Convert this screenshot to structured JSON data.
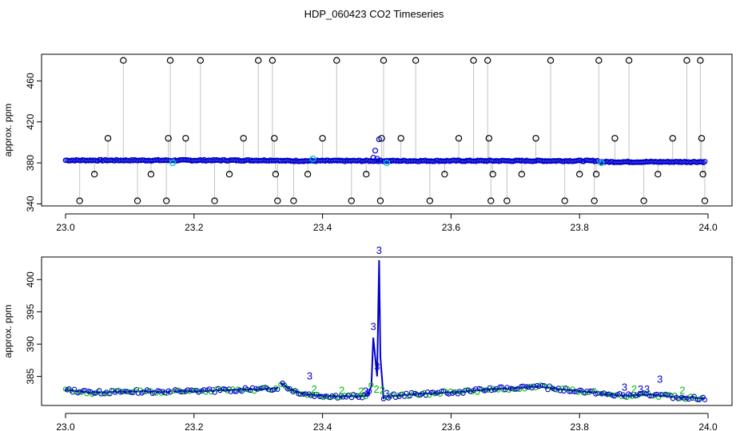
{
  "title": "HDP_060423  CO2 Timeseries",
  "colors": {
    "axis": "#000000",
    "blue": "#0000cc",
    "cyan": "#00cccc",
    "green": "#00bb00",
    "grey": "#888888",
    "outlier": "#000000"
  },
  "chart_data": [
    {
      "type": "scatter",
      "ylabel": "approx. ppm",
      "xlabel": "",
      "xlim": [
        23.0,
        24.0
      ],
      "ylim": [
        338,
        486
      ],
      "xticks": [
        23.0,
        23.2,
        23.4,
        23.6,
        23.8,
        24.0
      ],
      "xtick_labels": [
        "23.0",
        "23.2",
        "23.4",
        "23.6",
        "23.8",
        "24.0"
      ],
      "yticks": [
        340,
        380,
        420,
        460
      ],
      "ytick_labels": [
        "340",
        "380",
        "420",
        "460"
      ],
      "grid": false,
      "segments": [
        {
          "x0": 23.0,
          "x1": 23.163,
          "level": 382.5
        },
        {
          "x0": 23.168,
          "x1": 23.333,
          "level": 382.5
        },
        {
          "x0": 23.335,
          "x1": 23.499,
          "level": 382.0
        },
        {
          "x0": 23.5,
          "x1": 23.663,
          "level": 382.0
        },
        {
          "x0": 23.665,
          "x1": 23.828,
          "level": 382.0
        },
        {
          "x0": 23.832,
          "x1": 23.995,
          "level": 381.0
        }
      ],
      "outliers": [
        {
          "x": 23.022,
          "y": 343
        },
        {
          "x": 23.045,
          "y": 369
        },
        {
          "x": 23.066,
          "y": 404
        },
        {
          "x": 23.09,
          "y": 480
        },
        {
          "x": 23.112,
          "y": 343
        },
        {
          "x": 23.133,
          "y": 369
        },
        {
          "x": 23.157,
          "y": 343
        },
        {
          "x": 23.16,
          "y": 404
        },
        {
          "x": 23.163,
          "y": 480
        },
        {
          "x": 23.187,
          "y": 404
        },
        {
          "x": 23.21,
          "y": 480
        },
        {
          "x": 23.232,
          "y": 343
        },
        {
          "x": 23.255,
          "y": 369
        },
        {
          "x": 23.277,
          "y": 404
        },
        {
          "x": 23.3,
          "y": 480
        },
        {
          "x": 23.322,
          "y": 480
        },
        {
          "x": 23.325,
          "y": 404
        },
        {
          "x": 23.327,
          "y": 369
        },
        {
          "x": 23.33,
          "y": 343
        },
        {
          "x": 23.355,
          "y": 343
        },
        {
          "x": 23.377,
          "y": 369
        },
        {
          "x": 23.4,
          "y": 404
        },
        {
          "x": 23.422,
          "y": 480
        },
        {
          "x": 23.445,
          "y": 343
        },
        {
          "x": 23.468,
          "y": 369
        },
        {
          "x": 23.49,
          "y": 343
        },
        {
          "x": 23.492,
          "y": 404
        },
        {
          "x": 23.495,
          "y": 480
        },
        {
          "x": 23.522,
          "y": 404
        },
        {
          "x": 23.545,
          "y": 480
        },
        {
          "x": 23.567,
          "y": 343
        },
        {
          "x": 23.59,
          "y": 369
        },
        {
          "x": 23.612,
          "y": 404
        },
        {
          "x": 23.635,
          "y": 480
        },
        {
          "x": 23.657,
          "y": 480
        },
        {
          "x": 23.659,
          "y": 404
        },
        {
          "x": 23.662,
          "y": 343
        },
        {
          "x": 23.665,
          "y": 369
        },
        {
          "x": 23.687,
          "y": 343
        },
        {
          "x": 23.71,
          "y": 369
        },
        {
          "x": 23.732,
          "y": 404
        },
        {
          "x": 23.755,
          "y": 480
        },
        {
          "x": 23.777,
          "y": 343
        },
        {
          "x": 23.8,
          "y": 369
        },
        {
          "x": 23.823,
          "y": 343
        },
        {
          "x": 23.826,
          "y": 369
        },
        {
          "x": 23.83,
          "y": 480
        },
        {
          "x": 23.855,
          "y": 404
        },
        {
          "x": 23.877,
          "y": 480
        },
        {
          "x": 23.9,
          "y": 343
        },
        {
          "x": 23.922,
          "y": 369
        },
        {
          "x": 23.945,
          "y": 404
        },
        {
          "x": 23.967,
          "y": 480
        },
        {
          "x": 23.988,
          "y": 480
        },
        {
          "x": 23.99,
          "y": 404
        },
        {
          "x": 23.992,
          "y": 369
        },
        {
          "x": 23.995,
          "y": 343
        }
      ],
      "spike_points": [
        {
          "x": 23.479,
          "y": 385
        },
        {
          "x": 23.482,
          "y": 392
        },
        {
          "x": 23.485,
          "y": 384
        },
        {
          "x": 23.488,
          "y": 403
        }
      ],
      "cyan_points": [
        {
          "x": 23.167,
          "y": 380
        },
        {
          "x": 23.385,
          "y": 384
        },
        {
          "x": 23.5,
          "y": 380
        },
        {
          "x": 23.834,
          "y": 380
        }
      ]
    },
    {
      "type": "line",
      "ylabel": "approx. ppm",
      "xlabel": "",
      "xlim": [
        23.0,
        24.0
      ],
      "ylim": [
        380.5,
        403.5
      ],
      "xticks": [
        23.0,
        23.2,
        23.4,
        23.6,
        23.8,
        24.0
      ],
      "xtick_labels": [
        "23.0",
        "23.2",
        "23.4",
        "23.6",
        "23.8",
        "24.0"
      ],
      "yticks": [
        385,
        390,
        395,
        400
      ],
      "ytick_labels": [
        "385",
        "390",
        "395",
        "400"
      ],
      "grid": false,
      "segments": [
        {
          "x": [
            23.0,
            23.04,
            23.08,
            23.12,
            23.163
          ],
          "y": [
            382.9,
            382.5,
            382.6,
            382.7,
            382.6
          ]
        },
        {
          "x": [
            23.168,
            23.2,
            23.25,
            23.3,
            23.33
          ],
          "y": [
            382.7,
            382.7,
            382.9,
            383.0,
            383.2
          ]
        },
        {
          "x": [
            23.335,
            23.35,
            23.37,
            23.4,
            23.44,
            23.47,
            23.476,
            23.479,
            23.482,
            23.485,
            23.488,
            23.49,
            23.495
          ],
          "y": [
            384.0,
            383.0,
            382.3,
            382.0,
            381.9,
            382.0,
            383.5,
            391.0,
            388.0,
            385.0,
            403.0,
            388.0,
            381.5
          ]
        },
        {
          "x": [
            23.5,
            23.55,
            23.6,
            23.663
          ],
          "y": [
            381.9,
            382.3,
            382.5,
            383.0
          ]
        },
        {
          "x": [
            23.665,
            23.7,
            23.73,
            23.78,
            23.828
          ],
          "y": [
            383.0,
            383.2,
            383.5,
            382.9,
            382.5
          ]
        },
        {
          "x": [
            23.832,
            23.87,
            23.91,
            23.95,
            23.995
          ],
          "y": [
            382.3,
            382.0,
            382.2,
            381.8,
            381.6
          ]
        }
      ],
      "labels": [
        {
          "x": 23.38,
          "y": 384.5,
          "text": "3",
          "color": "blue"
        },
        {
          "x": 23.387,
          "y": 382.5,
          "text": "2",
          "color": "green"
        },
        {
          "x": 23.43,
          "y": 382.3,
          "text": "2",
          "color": "green"
        },
        {
          "x": 23.46,
          "y": 382.2,
          "text": "2",
          "color": "green"
        },
        {
          "x": 23.467,
          "y": 382.2,
          "text": "3",
          "color": "blue"
        },
        {
          "x": 23.479,
          "y": 392.2,
          "text": "3",
          "color": "blue"
        },
        {
          "x": 23.485,
          "y": 386.0,
          "text": "3",
          "color": "blue"
        },
        {
          "x": 23.488,
          "y": 404.0,
          "text": "3",
          "color": "blue"
        },
        {
          "x": 23.484,
          "y": 382.5,
          "text": "2",
          "color": "green"
        },
        {
          "x": 23.493,
          "y": 382.3,
          "text": "2",
          "color": "green"
        },
        {
          "x": 23.5,
          "y": 381.8,
          "text": "3",
          "color": "blue"
        },
        {
          "x": 23.87,
          "y": 382.8,
          "text": "3",
          "color": "blue"
        },
        {
          "x": 23.885,
          "y": 382.5,
          "text": "2",
          "color": "green"
        },
        {
          "x": 23.895,
          "y": 382.5,
          "text": "3",
          "color": "blue"
        },
        {
          "x": 23.905,
          "y": 382.5,
          "text": "3",
          "color": "blue"
        },
        {
          "x": 23.925,
          "y": 384.0,
          "text": "3",
          "color": "blue"
        },
        {
          "x": 23.96,
          "y": 382.3,
          "text": "2",
          "color": "green"
        }
      ]
    }
  ]
}
